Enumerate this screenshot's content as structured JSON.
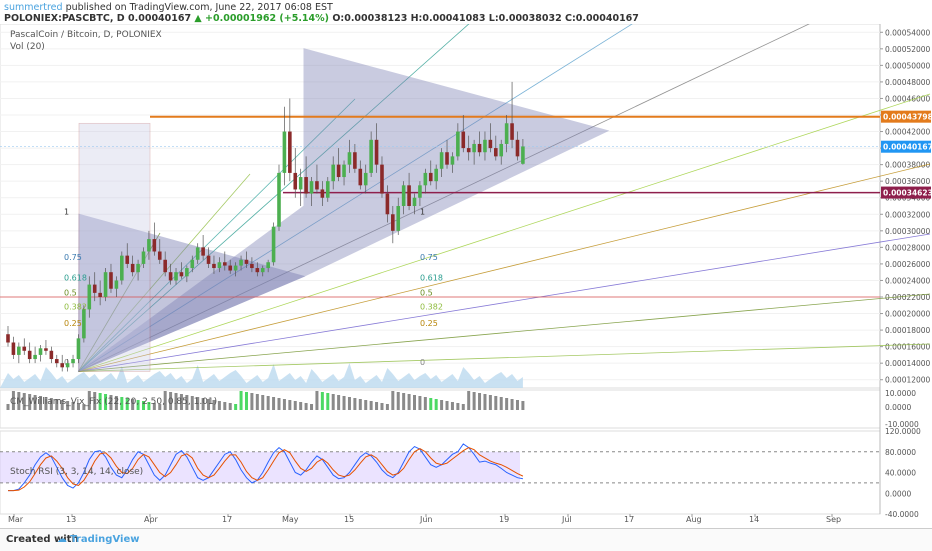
{
  "header": {
    "author": "summertred",
    "published": "published on TradingView.com, June 22, 2017 06:08 EST",
    "symbol": "POLONIEX:PASCBTC, D",
    "price": "0.00040167",
    "change": "▲ +0.00001962 (+5.14%)",
    "ohlc": "O:0.00038123 H:0.00041083 L:0.00038032 C:0.00040167"
  },
  "legend": {
    "title": "PascalCoin / Bitcoin, D, POLONIEX",
    "vol": "Vol (20)",
    "cm": "CM_Williams_Vix_Fix (22, 20, 2.50, 0.85, 1.01)",
    "stoch": "Stoch RSI (3, 3, 14, 14, close)"
  },
  "footer": {
    "created": "Created with",
    "brand": "TradingView"
  },
  "colors": {
    "up": "#4caf50",
    "down": "#8b2a2a",
    "wick": "#555555",
    "triangle": "#7b7fb3",
    "orange": "#e37b1c",
    "maroon": "#8e1f4c",
    "blue_badge": "#2196f3",
    "k_line": "#2962ff",
    "d_line": "#e65100"
  },
  "chart_data": {
    "type": "candlestick",
    "title": "PascalCoin / Bitcoin, D, POLONIEX",
    "price_axis": {
      "min": 0.00011,
      "max": 0.00055,
      "ticks": [
        "0.00054000",
        "0.00052000",
        "0.00050000",
        "0.00048000",
        "0.00046000",
        "0.00044000",
        "0.00042000",
        "0.00040000",
        "0.00038000",
        "0.00036000",
        "0.00034000",
        "0.00032000",
        "0.00030000",
        "0.00028000",
        "0.00026000",
        "0.00024000",
        "0.00022000",
        "0.00020000",
        "0.00018000",
        "0.00016000",
        "0.00014000",
        "0.00012000"
      ]
    },
    "time_axis": [
      "Mar",
      "13",
      "Apr",
      "17",
      "May",
      "15",
      "Jun",
      "19",
      "Jul",
      "17",
      "Aug",
      "14",
      "Sep"
    ],
    "price_labels": [
      {
        "value": "0.00043798",
        "color": "#e37b1c"
      },
      {
        "value": "0.00040167",
        "color": "#2196f3"
      },
      {
        "value": "0.00034623",
        "color": "#8e1f4c"
      }
    ],
    "candles": [
      [
        0.000175,
        0.000185,
        0.00016,
        0.000165
      ],
      [
        0.000165,
        0.000172,
        0.000145,
        0.00015
      ],
      [
        0.00015,
        0.000165,
        0.00014,
        0.00016
      ],
      [
        0.00016,
        0.00017,
        0.00015,
        0.000155
      ],
      [
        0.000155,
        0.000165,
        0.00014,
        0.000145
      ],
      [
        0.000145,
        0.00016,
        0.00014,
        0.00015
      ],
      [
        0.00015,
        0.000162,
        0.000142,
        0.000158
      ],
      [
        0.000158,
        0.000168,
        0.00015,
        0.000155
      ],
      [
        0.000155,
        0.00016,
        0.00014,
        0.000145
      ],
      [
        0.000145,
        0.00015,
        0.000135,
        0.00014
      ],
      [
        0.00014,
        0.00015,
        0.00013,
        0.000135
      ],
      [
        0.000135,
        0.000145,
        0.00013,
        0.00014
      ],
      [
        0.00014,
        0.00015,
        0.000135,
        0.000145
      ],
      [
        0.000145,
        0.000175,
        0.00014,
        0.00017
      ],
      [
        0.00017,
        0.00021,
        0.000165,
        0.000205
      ],
      [
        0.000205,
        0.000245,
        0.000195,
        0.000235
      ],
      [
        0.000235,
        0.00025,
        0.000215,
        0.000225
      ],
      [
        0.000225,
        0.00024,
        0.00021,
        0.00022
      ],
      [
        0.00022,
        0.000255,
        0.000215,
        0.00025
      ],
      [
        0.00025,
        0.00026,
        0.000225,
        0.00023
      ],
      [
        0.00023,
        0.000245,
        0.00022,
        0.00024
      ],
      [
        0.00024,
        0.000275,
        0.000235,
        0.00027
      ],
      [
        0.00027,
        0.000285,
        0.000255,
        0.00026
      ],
      [
        0.00026,
        0.00027,
        0.000245,
        0.00025
      ],
      [
        0.00025,
        0.000265,
        0.00024,
        0.00026
      ],
      [
        0.00026,
        0.00028,
        0.000255,
        0.000275
      ],
      [
        0.000275,
        0.0003,
        0.000265,
        0.00029
      ],
      [
        0.00029,
        0.00031,
        0.00027,
        0.000275
      ],
      [
        0.000275,
        0.00029,
        0.00026,
        0.000265
      ],
      [
        0.000265,
        0.000275,
        0.000245,
        0.00025
      ],
      [
        0.00025,
        0.00026,
        0.000235,
        0.00024
      ],
      [
        0.00024,
        0.000255,
        0.000235,
        0.00025
      ],
      [
        0.00025,
        0.000262,
        0.000242,
        0.000245
      ],
      [
        0.000245,
        0.000258,
        0.000238,
        0.000255
      ],
      [
        0.000255,
        0.00027,
        0.00025,
        0.000265
      ],
      [
        0.000265,
        0.000285,
        0.00026,
        0.00028
      ],
      [
        0.00028,
        0.000295,
        0.000265,
        0.00027
      ],
      [
        0.00027,
        0.00028,
        0.000255,
        0.00026
      ],
      [
        0.00026,
        0.00027,
        0.000248,
        0.000255
      ],
      [
        0.000255,
        0.000268,
        0.00025,
        0.000262
      ],
      [
        0.000262,
        0.000275,
        0.000252,
        0.000258
      ],
      [
        0.000258,
        0.000265,
        0.000248,
        0.000252
      ],
      [
        0.000252,
        0.000262,
        0.000245,
        0.000258
      ],
      [
        0.000258,
        0.00027,
        0.000252,
        0.000265
      ],
      [
        0.000265,
        0.000275,
        0.000255,
        0.00026
      ],
      [
        0.00026,
        0.000268,
        0.00025,
        0.000255
      ],
      [
        0.000255,
        0.000262,
        0.000245,
        0.00025
      ],
      [
        0.00025,
        0.000258,
        0.000245,
        0.000255
      ],
      [
        0.000255,
        0.000265,
        0.00025,
        0.000262
      ],
      [
        0.000262,
        0.00031,
        0.000258,
        0.000305
      ],
      [
        0.000305,
        0.00038,
        0.0003,
        0.00037
      ],
      [
        0.00037,
        0.00045,
        0.000355,
        0.00042
      ],
      [
        0.00042,
        0.00046,
        0.00036,
        0.00037
      ],
      [
        0.00037,
        0.0004,
        0.00034,
        0.00035
      ],
      [
        0.00035,
        0.000375,
        0.00033,
        0.000365
      ],
      [
        0.000365,
        0.00039,
        0.00034,
        0.000345
      ],
      [
        0.000345,
        0.000365,
        0.00033,
        0.00036
      ],
      [
        0.00036,
        0.00038,
        0.000345,
        0.00035
      ],
      [
        0.00035,
        0.00036,
        0.00033,
        0.00034
      ],
      [
        0.00034,
        0.000365,
        0.000335,
        0.00036
      ],
      [
        0.00036,
        0.00039,
        0.00035,
        0.00038
      ],
      [
        0.00038,
        0.0004,
        0.00036,
        0.000365
      ],
      [
        0.000365,
        0.000385,
        0.000355,
        0.00038
      ],
      [
        0.00038,
        0.00041,
        0.00037,
        0.000395
      ],
      [
        0.000395,
        0.000405,
        0.00037,
        0.000375
      ],
      [
        0.000375,
        0.000385,
        0.00035,
        0.000355
      ],
      [
        0.000355,
        0.00038,
        0.000345,
        0.00037
      ],
      [
        0.00037,
        0.00042,
        0.000365,
        0.00041
      ],
      [
        0.00041,
        0.00043,
        0.00037,
        0.00038
      ],
      [
        0.00038,
        0.00039,
        0.00034,
        0.000345
      ],
      [
        0.000345,
        0.000355,
        0.00031,
        0.00032
      ],
      [
        0.00032,
        0.00033,
        0.000285,
        0.0003
      ],
      [
        0.0003,
        0.00034,
        0.000295,
        0.00033
      ],
      [
        0.00033,
        0.00036,
        0.00032,
        0.000355
      ],
      [
        0.000355,
        0.00037,
        0.000325,
        0.00033
      ],
      [
        0.00033,
        0.000345,
        0.00032,
        0.00034
      ],
      [
        0.00034,
        0.00036,
        0.00033,
        0.000355
      ],
      [
        0.000355,
        0.000375,
        0.000345,
        0.00037
      ],
      [
        0.00037,
        0.000385,
        0.000355,
        0.00036
      ],
      [
        0.00036,
        0.00038,
        0.00035,
        0.000375
      ],
      [
        0.000375,
        0.0004,
        0.000365,
        0.000395
      ],
      [
        0.000395,
        0.00041,
        0.000375,
        0.00038
      ],
      [
        0.00038,
        0.000395,
        0.00037,
        0.00039
      ],
      [
        0.00039,
        0.00043,
        0.000385,
        0.00042
      ],
      [
        0.00042,
        0.00044,
        0.000395,
        0.0004
      ],
      [
        0.0004,
        0.000415,
        0.000385,
        0.000395
      ],
      [
        0.000395,
        0.00041,
        0.00038,
        0.000405
      ],
      [
        0.000405,
        0.00042,
        0.00039,
        0.000395
      ],
      [
        0.000395,
        0.00042,
        0.000385,
        0.00041
      ],
      [
        0.00041,
        0.00043,
        0.000395,
        0.0004
      ],
      [
        0.0004,
        0.000415,
        0.000385,
        0.00039
      ],
      [
        0.00039,
        0.00041,
        0.00038,
        0.000405
      ],
      [
        0.000405,
        0.00044,
        0.000395,
        0.00043
      ],
      [
        0.00043,
        0.00048,
        0.0004,
        0.00041
      ],
      [
        0.00041,
        0.00042,
        0.000385,
        0.00039
      ],
      [
        0.000381,
        0.000411,
        0.00038,
        0.000402
      ]
    ],
    "fib_levels": [
      "1",
      "0.75",
      "0.618",
      "0.5",
      "0.382",
      "0.25",
      "0"
    ],
    "cm_axis": [
      "10.0000",
      "0.0000",
      "-10.0000"
    ],
    "stoch_axis": [
      "120.0000",
      "80.0000",
      "40.0000",
      "0.0000",
      "-40.0000"
    ],
    "stoch_k": [
      5,
      5,
      8,
      20,
      35,
      55,
      70,
      78,
      70,
      50,
      30,
      15,
      10,
      20,
      40,
      65,
      80,
      82,
      70,
      50,
      35,
      30,
      45,
      65,
      80,
      75,
      55,
      35,
      25,
      35,
      55,
      75,
      82,
      70,
      50,
      30,
      25,
      30,
      45,
      60,
      75,
      80,
      65,
      45,
      30,
      20,
      25,
      40,
      60,
      78,
      88,
      80,
      60,
      40,
      35,
      45,
      60,
      72,
      65,
      50,
      35,
      28,
      30,
      40,
      55,
      70,
      78,
      72,
      60,
      45,
      35,
      30,
      40,
      60,
      80,
      90,
      85,
      70,
      55,
      50,
      55,
      65,
      75,
      80,
      95,
      88,
      75,
      60,
      62,
      58,
      55,
      48,
      40,
      35,
      30,
      28
    ],
    "stoch_d": [
      5,
      5,
      6,
      12,
      22,
      38,
      55,
      68,
      72,
      62,
      48,
      30,
      18,
      15,
      25,
      42,
      62,
      76,
      78,
      68,
      52,
      40,
      38,
      48,
      65,
      75,
      70,
      55,
      40,
      32,
      40,
      55,
      72,
      76,
      68,
      48,
      35,
      30,
      35,
      48,
      62,
      74,
      74,
      60,
      42,
      30,
      25,
      30,
      45,
      62,
      78,
      84,
      78,
      62,
      48,
      42,
      48,
      60,
      66,
      58,
      45,
      35,
      32,
      35,
      45,
      58,
      70,
      74,
      68,
      55,
      42,
      35,
      38,
      48,
      65,
      80,
      86,
      80,
      68,
      58,
      55,
      58,
      66,
      74,
      82,
      88,
      84,
      74,
      68,
      62,
      58,
      55,
      50,
      44,
      38,
      33
    ]
  }
}
